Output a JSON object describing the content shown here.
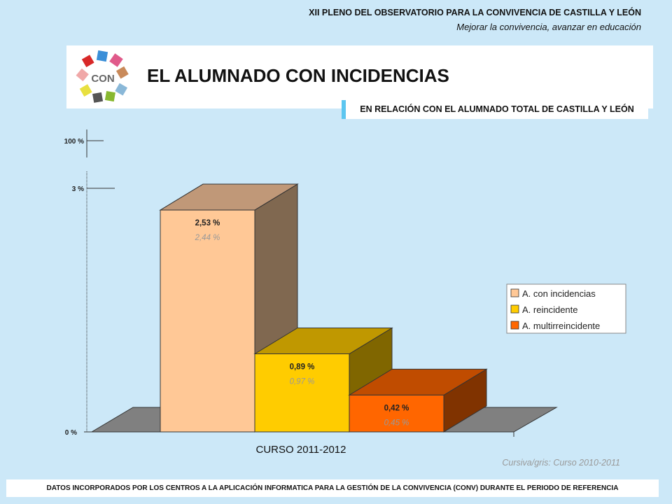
{
  "header": {
    "event_title": "XII PLENO DEL OBSERVATORIO PARA LA CONVIVENCIA DE CASTILLA Y LEÓN",
    "event_subtitle": "Mejorar la convivencia, avanzar en educación",
    "logo_text": "CON",
    "main_title": "EL ALUMNADO CON INCIDENCIAS",
    "section_label": "EN RELACIÓN CON EL ALUMNADO TOTAL DE CASTILLA Y LEÓN"
  },
  "footnote": "Cursiva/gris: Curso 2010-2011",
  "footer": "DATOS INCORPORADOS POR LOS CENTROS A LA APLICACIÓN INFORMATICA PARA LA GESTIÓN DE LA CONVIVENCIA (CONV) DURANTE EL PERIODO DE REFERENCIA",
  "colors": {
    "background": "#cce8f8",
    "series_1": "#ffc896",
    "series_2": "#ffcc00",
    "series_3": "#ff6600",
    "floor": "#808080",
    "previous_year_text": "#999999"
  },
  "chart_data": {
    "type": "bar",
    "xlabel": "CURSO 2011-2012",
    "y_ticks": [
      "0 %",
      "3 %",
      "100 %"
    ],
    "ylim": [
      0,
      3
    ],
    "y_axis_break": true,
    "legend_position": "right",
    "series": [
      {
        "name": "A. con incidencias",
        "value": 2.53,
        "label": "2,53 %",
        "previous_value": 2.44,
        "previous_label": "2,44 %"
      },
      {
        "name": "A. reincidente",
        "value": 0.89,
        "label": "0,89 %",
        "previous_value": 0.97,
        "previous_label": "0,97 %"
      },
      {
        "name": "A. multirreincidente",
        "value": 0.42,
        "label": "0,42 %",
        "previous_value": 0.45,
        "previous_label": "0,45 %"
      }
    ]
  }
}
